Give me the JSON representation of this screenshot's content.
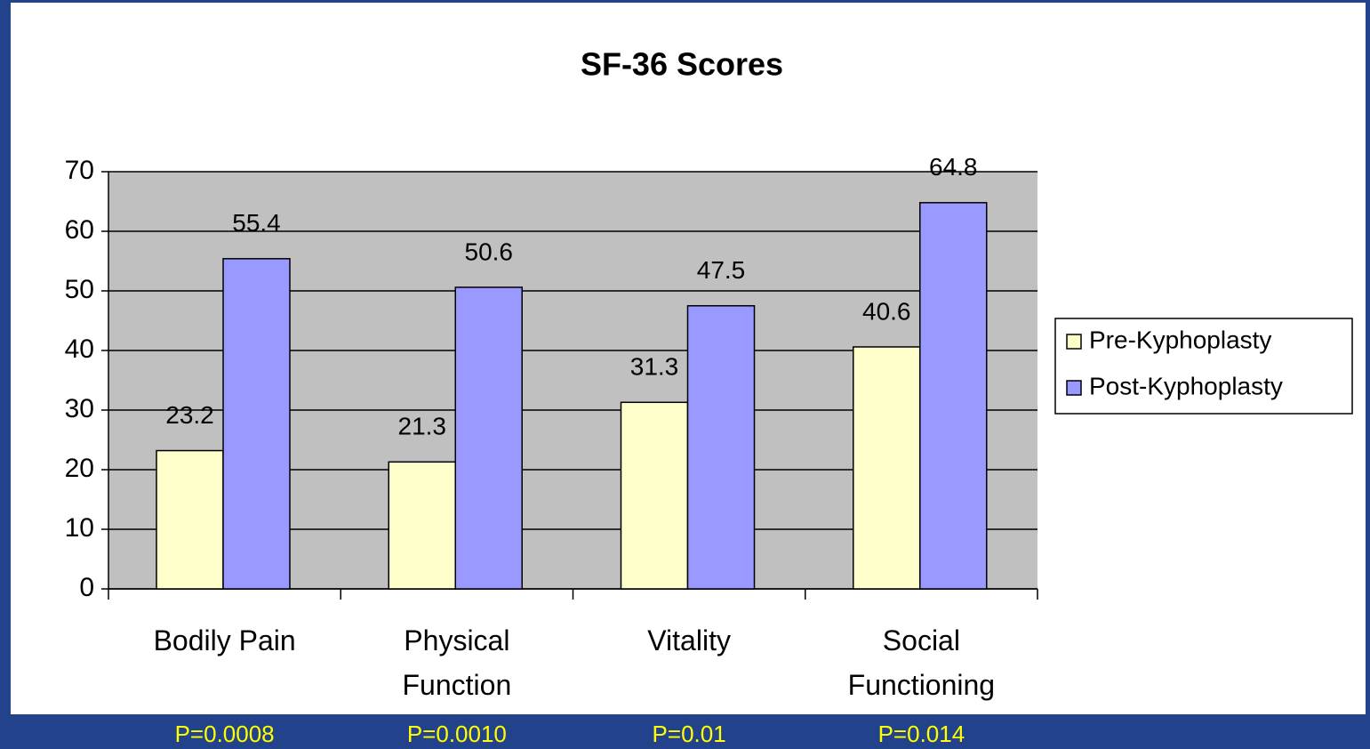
{
  "chart_data": {
    "type": "bar",
    "title": "SF-36 Scores",
    "categories": [
      "Bodily Pain",
      "Physical Function",
      "Vitality",
      "Social Functioning"
    ],
    "series": [
      {
        "name": "Pre-Kyphoplasty",
        "color": "#ffffcc",
        "values": [
          23.2,
          21.3,
          31.3,
          40.6
        ]
      },
      {
        "name": "Post-Kyphoplasty",
        "color": "#9999ff",
        "values": [
          55.4,
          50.6,
          47.5,
          64.8
        ]
      }
    ],
    "ylim": [
      0,
      70
    ],
    "yticks": [
      0,
      10,
      20,
      30,
      40,
      50,
      60,
      70
    ],
    "grid": true,
    "legend": "right",
    "annotations": [
      "P=0.0008",
      "P=0.0010",
      "P=0.01",
      "P=0.014"
    ]
  }
}
